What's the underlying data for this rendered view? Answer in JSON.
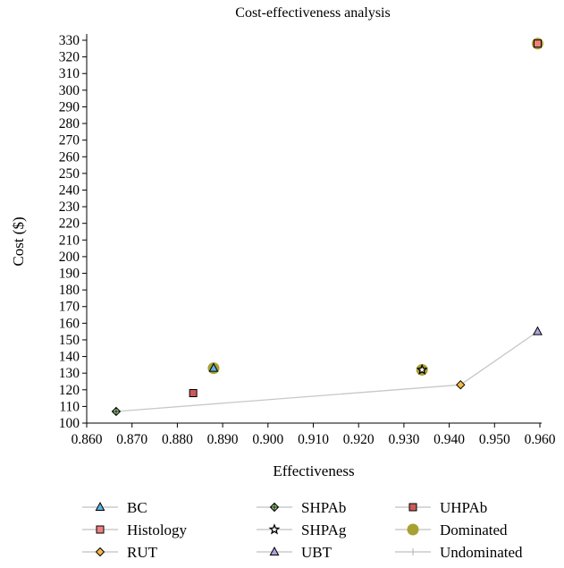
{
  "chart_data": {
    "type": "scatter",
    "title": "Cost-effectiveness analysis",
    "xlabel": "Effectiveness",
    "ylabel": "Cost ($)",
    "xlim": [
      0.86,
      0.96
    ],
    "ylim": [
      100,
      330
    ],
    "x_ticks": [
      "0.860",
      "0.870",
      "0.880",
      "0.890",
      "0.900",
      "0.910",
      "0.920",
      "0.930",
      "0.940",
      "0.950",
      "0.960"
    ],
    "y_ticks": [
      "100",
      "110",
      "120",
      "130",
      "140",
      "150",
      "160",
      "170",
      "180",
      "190",
      "200",
      "210",
      "220",
      "230",
      "240",
      "250",
      "260",
      "270",
      "280",
      "290",
      "300",
      "310",
      "320",
      "330"
    ],
    "grid": false,
    "legend_position": "bottom",
    "series": [
      {
        "name": "BC",
        "marker": "triangle",
        "color": "#5bb3e0",
        "points": [
          {
            "x": 0.888,
            "y": 133
          }
        ]
      },
      {
        "name": "Histology",
        "marker": "square",
        "color": "#f08080",
        "points": [
          {
            "x": 0.9595,
            "y": 328
          }
        ]
      },
      {
        "name": "RUT",
        "marker": "diamond",
        "color": "#f5b942",
        "points": [
          {
            "x": 0.9425,
            "y": 123
          }
        ]
      },
      {
        "name": "SHPAb",
        "marker": "diamond-cross",
        "color": "#9fd48a",
        "points": [
          {
            "x": 0.8665,
            "y": 107
          }
        ]
      },
      {
        "name": "SHPAg",
        "marker": "star",
        "color": "#000000",
        "points": [
          {
            "x": 0.934,
            "y": 132
          }
        ]
      },
      {
        "name": "UBT",
        "marker": "triangle",
        "color": "#a9a4dd",
        "points": [
          {
            "x": 0.9595,
            "y": 155
          }
        ]
      },
      {
        "name": "UHPAb",
        "marker": "square",
        "color": "#cc5a5a",
        "points": [
          {
            "x": 0.8835,
            "y": 118
          }
        ]
      },
      {
        "name": "Dominated",
        "marker": "circle",
        "color": "#a8a032",
        "points": [
          {
            "x": 0.888,
            "y": 133
          },
          {
            "x": 0.934,
            "y": 132
          },
          {
            "x": 0.9595,
            "y": 328
          }
        ]
      },
      {
        "name": "Undominated",
        "marker": "line",
        "color": "#c8c8c8",
        "points": [
          {
            "x": 0.8665,
            "y": 107
          },
          {
            "x": 0.9425,
            "y": 123
          },
          {
            "x": 0.9595,
            "y": 155
          }
        ]
      }
    ]
  }
}
